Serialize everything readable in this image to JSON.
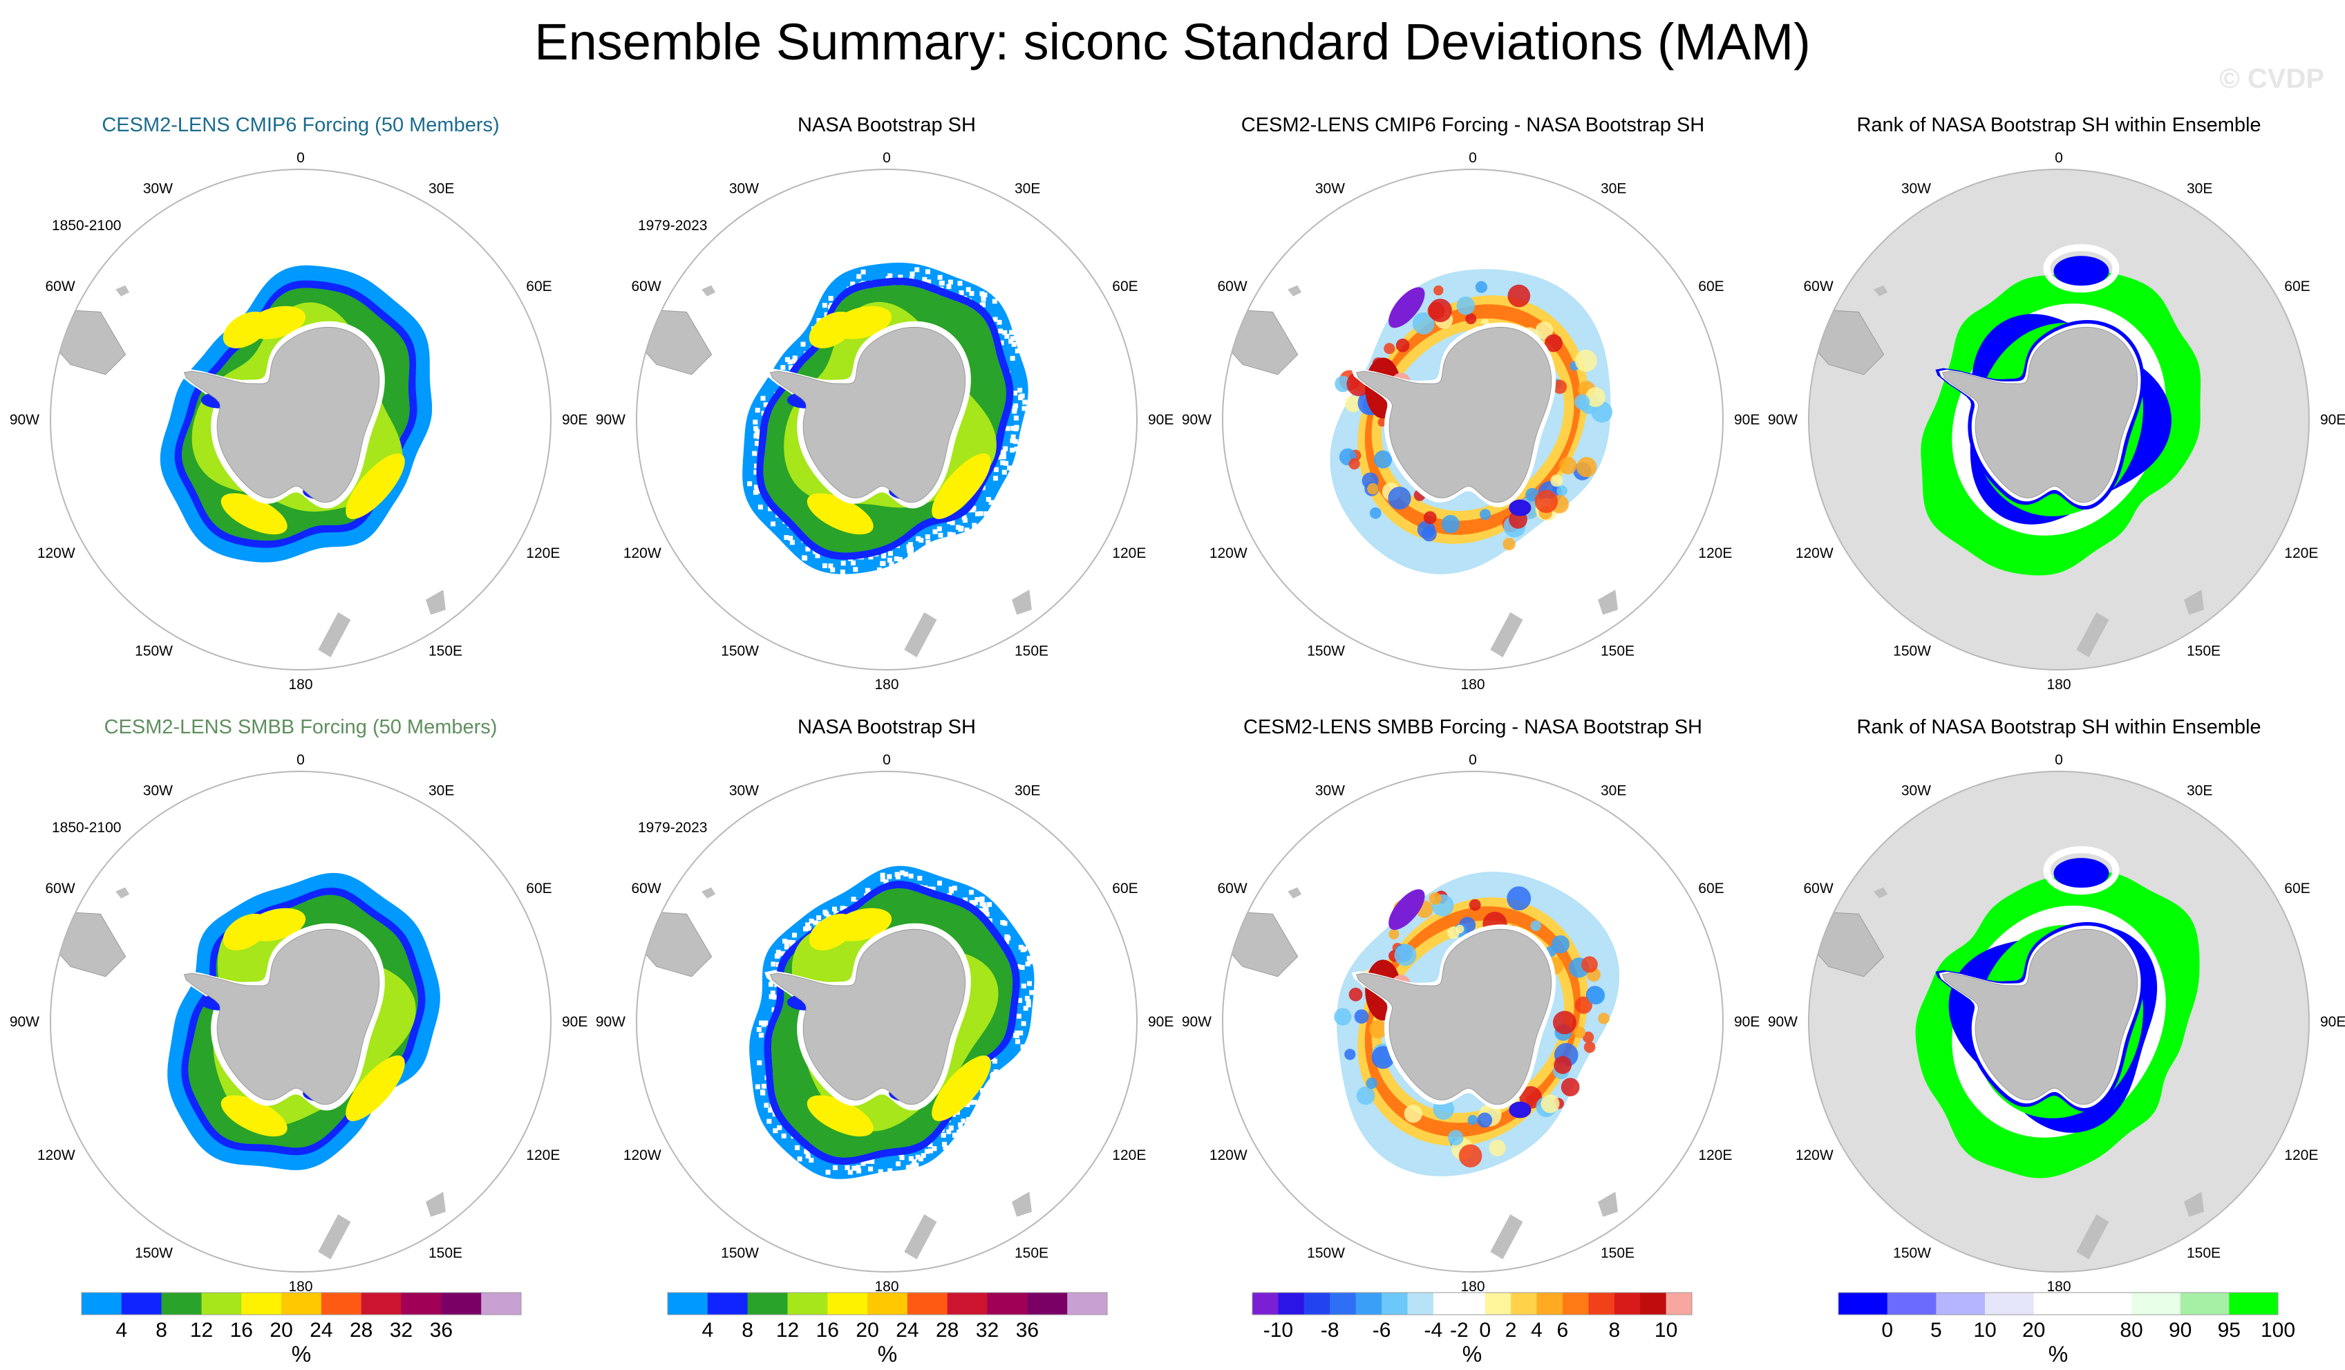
{
  "title": "Ensemble Summary: siconc Standard Deviations (MAM)",
  "watermark": "© CVDP",
  "colors": {
    "land": "#bfbfbf",
    "circle_edge": "#b8b8b8",
    "rank_background": "#dedede",
    "title_row1": "#1b6b8f",
    "title_row2": "#5f8f5f"
  },
  "longitude_labels": [
    "0",
    "30E",
    "60E",
    "90E",
    "120E",
    "150E",
    "180",
    "150W",
    "120W",
    "90W",
    "60W",
    "30W"
  ],
  "rows": [
    {
      "panels": [
        {
          "title": "CESM2-LENS CMIP6 Forcing (50 Members)",
          "period": "1850-2100",
          "kind": "stddev",
          "field": "model"
        },
        {
          "title": "NASA Bootstrap SH",
          "period": "1979-2023",
          "kind": "stddev",
          "field": "obs"
        },
        {
          "title": "CESM2-LENS CMIP6 Forcing - NASA Bootstrap SH",
          "period": "",
          "kind": "diff",
          "field": "diff"
        },
        {
          "title": "Rank of NASA Bootstrap SH within Ensemble",
          "period": "",
          "kind": "rank",
          "field": "rank"
        }
      ]
    },
    {
      "panels": [
        {
          "title": "CESM2-LENS SMBB Forcing (50 Members)",
          "period": "1850-2100",
          "kind": "stddev",
          "field": "model"
        },
        {
          "title": "NASA Bootstrap SH",
          "period": "1979-2023",
          "kind": "stddev",
          "field": "obs"
        },
        {
          "title": "CESM2-LENS SMBB Forcing - NASA Bootstrap SH",
          "period": "",
          "kind": "diff",
          "field": "diff"
        },
        {
          "title": "Rank of NASA Bootstrap SH within Ensemble",
          "period": "",
          "kind": "rank",
          "field": "rank"
        }
      ]
    }
  ],
  "colorbars": [
    {
      "name": "stddev",
      "colors": [
        "#0099ff",
        "#0f24ff",
        "#29a329",
        "#a6e61a",
        "#fff200",
        "#ffc800",
        "#ff5a14",
        "#cc1430",
        "#a00055",
        "#7a0066",
        "#c8a0d2"
      ],
      "ticks": [
        "4",
        "8",
        "12",
        "16",
        "20",
        "24",
        "28",
        "32",
        "36"
      ],
      "tick_after": [
        0,
        1,
        2,
        3,
        4,
        5,
        6,
        7,
        8
      ],
      "unit": "%"
    },
    {
      "name": "stddev-obs",
      "colors": [
        "#0099ff",
        "#0f24ff",
        "#29a329",
        "#a6e61a",
        "#fff200",
        "#ffc800",
        "#ff5a14",
        "#cc1430",
        "#a00055",
        "#7a0066",
        "#c8a0d2"
      ],
      "ticks": [
        "4",
        "8",
        "12",
        "16",
        "20",
        "24",
        "28",
        "32",
        "36"
      ],
      "tick_after": [
        0,
        1,
        2,
        3,
        4,
        5,
        6,
        7,
        8
      ],
      "unit": "%"
    },
    {
      "name": "diff",
      "colors": [
        "#7a1fd6",
        "#2b14e6",
        "#2244f0",
        "#2f6ff5",
        "#3aa0f7",
        "#6cc8f9",
        "#b7e2f7",
        "#ffffff",
        "#ffffff",
        "#fff59a",
        "#ffd24a",
        "#ffaa20",
        "#ff7a14",
        "#f24018",
        "#d91a1a",
        "#c00c0c",
        "#f7a6a0"
      ],
      "ticks": [
        "-10",
        "-8",
        "-6",
        "-4",
        "-2",
        "0",
        "2",
        "4",
        "6",
        "8",
        "10"
      ],
      "tick_after": [
        0,
        2,
        4,
        6,
        7,
        8,
        9,
        10,
        11,
        13,
        15
      ],
      "unit": "%"
    },
    {
      "name": "rank",
      "colors": [
        "#0000ff",
        "#6b6bff",
        "#b4b4ff",
        "#e6e6fa",
        "#ffffff",
        "#ffffff",
        "#e8ffe8",
        "#a6f0a6",
        "#00ff00"
      ],
      "ticks": [
        "0",
        "5",
        "10",
        "20",
        "80",
        "90",
        "95",
        "100"
      ],
      "tick_after": [
        0,
        1,
        2,
        3,
        5,
        6,
        7,
        8
      ],
      "unit": "%"
    }
  ]
}
